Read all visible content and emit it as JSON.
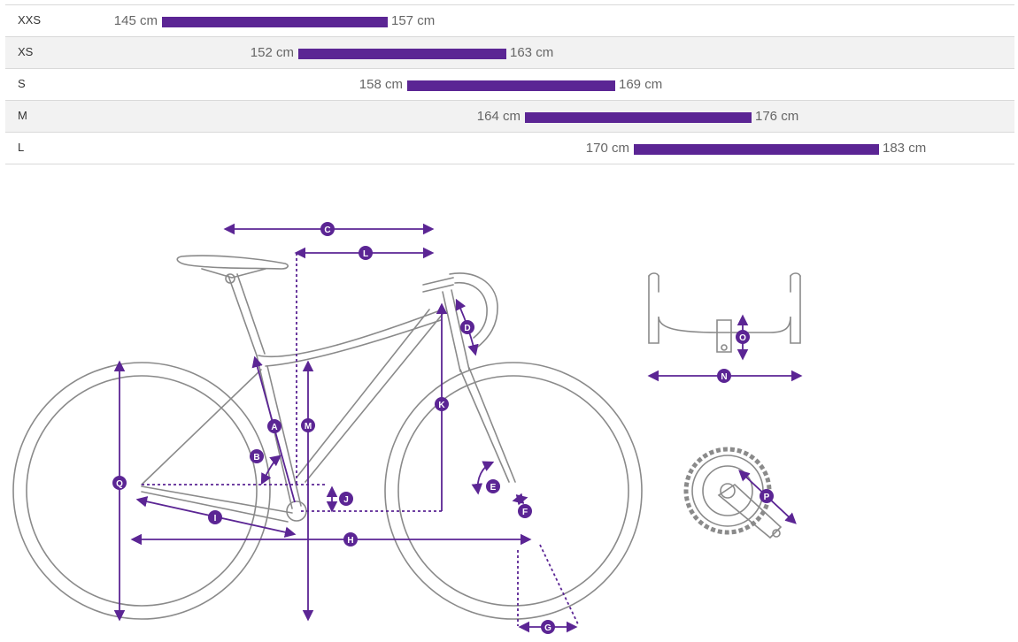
{
  "size_chart": {
    "rows": [
      {
        "size": "XXS",
        "min": "145 cm",
        "max": "157 cm",
        "min_cm": 145,
        "max_cm": 157
      },
      {
        "size": "XS",
        "min": "152 cm",
        "max": "163 cm",
        "min_cm": 152,
        "max_cm": 163
      },
      {
        "size": "S",
        "min": "158 cm",
        "max": "169 cm",
        "min_cm": 158,
        "max_cm": 169
      },
      {
        "size": "M",
        "min": "164 cm",
        "max": "176 cm",
        "min_cm": 164,
        "max_cm": 176
      },
      {
        "size": "L",
        "min": "170 cm",
        "max": "183 cm",
        "min_cm": 170,
        "max_cm": 183
      }
    ]
  },
  "geometry_labels": {
    "A": "A",
    "B": "B",
    "C": "C",
    "D": "D",
    "E": "E",
    "F": "F",
    "G": "G",
    "H": "H",
    "I": "I",
    "J": "J",
    "K": "K",
    "L": "L",
    "M": "M",
    "N": "N",
    "O": "O",
    "P": "P",
    "Q": "Q"
  },
  "colors": {
    "accent": "#5b2594",
    "line_art": "#8a8a8a",
    "row_alt": "#f2f2f2"
  }
}
